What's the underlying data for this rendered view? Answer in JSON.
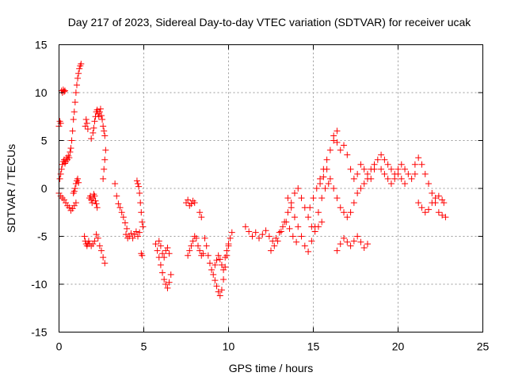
{
  "chart_data": {
    "type": "scatter",
    "title": "Day 217 of 2023, Sidereal Day-to-day VTEC variation (SDTVAR) for receiver ucak",
    "xlabel": "GPS time / hours",
    "ylabel": "SDTVAR / TECUs",
    "xlim": [
      0,
      25
    ],
    "ylim": [
      -15,
      15
    ],
    "xticks": [
      0,
      5,
      10,
      15,
      20,
      25
    ],
    "yticks": [
      -15,
      -10,
      -5,
      0,
      5,
      10,
      15
    ],
    "grid": true,
    "marker": "+",
    "color": "#ff0000",
    "series": [
      {
        "name": "SDTVAR",
        "segments": [
          {
            "x": [
              0.0,
              0.05,
              0.1,
              0.15,
              0.2,
              0.25,
              0.3,
              0.35
            ],
            "y": [
              6.5,
              7.0,
              6.8,
              10.2,
              10.0,
              10.3,
              10.1,
              10.2
            ]
          },
          {
            "x": [
              0.05,
              0.1,
              0.15,
              0.2,
              0.25,
              0.3,
              0.35,
              0.4,
              0.45,
              0.5,
              0.55,
              0.6,
              0.65,
              0.7,
              0.75,
              0.8,
              0.85,
              0.9,
              0.95,
              1.0,
              1.05,
              1.1,
              1.15,
              1.2,
              1.25,
              1.3
            ],
            "y": [
              1.0,
              1.5,
              2.0,
              2.5,
              2.8,
              3.0,
              2.6,
              2.8,
              3.2,
              3.0,
              3.4,
              3.2,
              3.8,
              4.2,
              5.0,
              6.0,
              7.2,
              8.0,
              9.0,
              10.0,
              10.8,
              11.5,
              12.0,
              12.5,
              12.8,
              13.0
            ]
          },
          {
            "x": [
              0.0,
              0.1,
              0.2,
              0.3,
              0.4,
              0.5,
              0.6,
              0.7,
              0.8,
              0.9,
              1.0
            ],
            "y": [
              -0.5,
              -0.8,
              -1.0,
              -1.2,
              -1.5,
              -1.8,
              -2.0,
              -2.3,
              -2.1,
              -1.8,
              -1.5
            ]
          },
          {
            "x": [
              0.85,
              0.9,
              0.95,
              1.0,
              1.05,
              1.1,
              1.15
            ],
            "y": [
              -0.5,
              -0.3,
              0.0,
              0.5,
              0.8,
              1.0,
              0.6
            ]
          },
          {
            "x": [
              1.5,
              1.55,
              1.6,
              1.65,
              1.7,
              1.75,
              1.8,
              1.9,
              2.0,
              2.1
            ],
            "y": [
              -5.0,
              -5.5,
              -5.8,
              -6.0,
              -5.8,
              -5.5,
              -5.8,
              -6.0,
              -5.8,
              -5.5
            ]
          },
          {
            "x": [
              1.55,
              1.6,
              1.65,
              1.7
            ],
            "y": [
              6.5,
              7.2,
              6.8,
              6.2
            ]
          },
          {
            "x": [
              1.9,
              2.0,
              2.05,
              2.1,
              2.15,
              2.2,
              2.25,
              2.3,
              2.35,
              2.4,
              2.45,
              2.5,
              2.55,
              2.6,
              2.65,
              2.7
            ],
            "y": [
              5.2,
              5.8,
              6.3,
              7.0,
              7.5,
              8.0,
              8.2,
              7.8,
              7.5,
              8.0,
              8.3,
              7.6,
              7.2,
              6.5,
              6.0,
              5.5
            ]
          },
          {
            "x": [
              1.8,
              1.85,
              1.9,
              1.95,
              2.0,
              2.05,
              2.1,
              2.15,
              2.2,
              2.25
            ],
            "y": [
              -1.0,
              -0.8,
              -1.2,
              -1.5,
              -1.0,
              -0.6,
              -0.8,
              -1.3,
              -1.6,
              -2.0
            ]
          },
          {
            "x": [
              2.2,
              2.3,
              2.4,
              2.5,
              2.6,
              2.7
            ],
            "y": [
              -4.8,
              -5.2,
              -6.0,
              -6.5,
              -7.2,
              -7.8
            ]
          },
          {
            "x": [
              2.6,
              2.65,
              2.7,
              2.75
            ],
            "y": [
              1.0,
              2.0,
              3.0,
              4.0
            ]
          },
          {
            "x": [
              3.3,
              3.4,
              3.5,
              3.6,
              3.7,
              3.8,
              3.9,
              4.0
            ],
            "y": [
              0.5,
              -0.8,
              -1.6,
              -2.0,
              -2.5,
              -3.0,
              -3.6,
              -4.2
            ]
          },
          {
            "x": [
              3.95,
              4.05,
              4.15,
              4.25,
              4.35,
              4.45,
              4.55,
              4.65,
              4.75
            ],
            "y": [
              -4.8,
              -5.2,
              -5.0,
              -4.7,
              -5.2,
              -4.8,
              -4.5,
              -5.0,
              -4.6
            ]
          },
          {
            "x": [
              4.6,
              4.65,
              4.7,
              4.75,
              4.8,
              4.85,
              4.9,
              4.95
            ],
            "y": [
              0.8,
              0.5,
              0.2,
              -0.5,
              -1.5,
              -2.5,
              -3.5,
              -4.0
            ]
          },
          {
            "x": [
              4.85,
              4.9
            ],
            "y": [
              -6.8,
              -7.0
            ]
          },
          {
            "x": [
              5.7,
              5.8,
              5.9,
              6.0,
              6.1,
              6.2,
              6.3,
              6.4,
              6.5,
              6.6
            ],
            "y": [
              -5.8,
              -6.5,
              -7.2,
              -8.0,
              -8.8,
              -9.5,
              -10.0,
              -10.4,
              -9.8,
              -9.0
            ]
          },
          {
            "x": [
              5.9,
              6.0,
              6.1,
              6.2,
              6.3,
              6.4,
              6.5
            ],
            "y": [
              -5.5,
              -6.0,
              -6.8,
              -7.2,
              -6.5,
              -6.2,
              -6.8
            ]
          },
          {
            "x": [
              7.5,
              7.6,
              7.7,
              7.8,
              7.9,
              8.0
            ],
            "y": [
              -1.5,
              -1.2,
              -1.8,
              -1.6,
              -1.3,
              -1.5
            ]
          },
          {
            "x": [
              8.3,
              8.4
            ],
            "y": [
              -2.5,
              -3.0
            ]
          },
          {
            "x": [
              7.6,
              7.7,
              7.8,
              7.9,
              8.0,
              8.1,
              8.2,
              8.3,
              8.4,
              8.5
            ],
            "y": [
              -7.0,
              -6.5,
              -6.0,
              -5.5,
              -5.0,
              -5.2,
              -6.0,
              -6.5,
              -7.0,
              -6.8
            ]
          },
          {
            "x": [
              8.6,
              8.7,
              8.8,
              8.9,
              9.0,
              9.1,
              9.2,
              9.3,
              9.4,
              9.5,
              9.6,
              9.7,
              9.8,
              9.9,
              10.0
            ],
            "y": [
              -5.2,
              -6.0,
              -7.0,
              -7.8,
              -8.5,
              -9.0,
              -9.6,
              -10.2,
              -10.8,
              -11.2,
              -10.6,
              -9.5,
              -8.2,
              -7.0,
              -6.0
            ]
          },
          {
            "x": [
              9.2,
              9.3,
              9.4,
              9.5,
              9.6,
              9.7,
              9.8,
              9.9,
              10.0,
              10.1,
              10.2
            ],
            "y": [
              -8.0,
              -7.5,
              -7.0,
              -7.4,
              -8.0,
              -8.5,
              -7.2,
              -6.5,
              -5.8,
              -5.2,
              -4.6
            ]
          },
          {
            "x": [
              11.0,
              11.2,
              11.4,
              11.6,
              11.8,
              12.0,
              12.2,
              12.4,
              12.6,
              12.8,
              13.0,
              13.2,
              13.4,
              13.6,
              13.8,
              14.0
            ],
            "y": [
              -4.0,
              -4.5,
              -5.0,
              -4.6,
              -5.2,
              -4.8,
              -4.4,
              -5.0,
              -5.5,
              -5.2,
              -4.6,
              -4.0,
              -3.5,
              -4.2,
              -5.0,
              -5.6
            ]
          },
          {
            "x": [
              12.5,
              12.7,
              12.9,
              13.1,
              13.3,
              13.5,
              13.7,
              13.9,
              14.1,
              14.3,
              14.5,
              14.7,
              14.9,
              15.1,
              15.3,
              15.5
            ],
            "y": [
              -6.5,
              -6.0,
              -5.5,
              -4.5,
              -3.5,
              -2.5,
              -1.5,
              -0.5,
              0.0,
              -1.0,
              -2.0,
              -3.0,
              -4.0,
              -4.5,
              -4.0,
              -3.5
            ]
          },
          {
            "x": [
              13.5,
              13.7,
              13.9,
              14.1,
              14.3,
              14.5,
              14.7,
              14.9,
              15.1,
              15.3,
              15.5,
              15.7,
              15.9
            ],
            "y": [
              -1.0,
              -2.0,
              -3.0,
              -4.0,
              -5.0,
              -6.0,
              -6.6,
              -5.5,
              -4.0,
              -2.5,
              -1.0,
              0.0,
              0.5
            ]
          },
          {
            "x": [
              14.8,
              15.0,
              15.2,
              15.4,
              15.6,
              15.8,
              16.0,
              16.2,
              16.4
            ],
            "y": [
              -2.0,
              -1.0,
              0.0,
              1.0,
              2.0,
              3.0,
              4.0,
              5.0,
              6.0
            ]
          },
          {
            "x": [
              15.4,
              15.6,
              15.8,
              16.0,
              16.2,
              16.4,
              16.6,
              16.8,
              17.0,
              17.2,
              17.4,
              17.6,
              17.8,
              18.0,
              18.2
            ],
            "y": [
              0.5,
              1.2,
              2.0,
              1.0,
              0.0,
              -1.0,
              -2.0,
              -2.5,
              -3.0,
              -2.5,
              -1.5,
              -0.5,
              0.0,
              0.5,
              1.0
            ]
          },
          {
            "x": [
              16.4,
              16.6,
              16.8,
              17.0,
              17.2,
              17.4,
              17.6,
              17.8,
              18.0,
              18.2
            ],
            "y": [
              -6.5,
              -5.8,
              -5.2,
              -5.6,
              -6.0,
              -5.5,
              -5.0,
              -5.6,
              -6.2,
              -5.8
            ]
          },
          {
            "x": [
              16.2,
              16.4,
              16.6,
              16.8,
              17.0,
              17.2,
              17.4,
              17.6,
              17.8,
              18.0,
              18.2,
              18.4,
              18.6
            ],
            "y": [
              5.5,
              4.8,
              4.0,
              4.5,
              3.5,
              2.0,
              1.0,
              1.5,
              2.5,
              2.0,
              1.5,
              2.0,
              2.5
            ]
          },
          {
            "x": [
              18.4,
              18.6,
              18.8,
              19.0,
              19.2,
              19.4,
              19.6,
              19.8,
              20.0,
              20.2,
              20.4,
              20.6,
              20.8,
              21.0
            ],
            "y": [
              1.0,
              2.0,
              3.0,
              3.5,
              3.0,
              2.5,
              2.0,
              1.5,
              2.0,
              2.5,
              2.0,
              1.5,
              1.0,
              1.5
            ]
          },
          {
            "x": [
              19.0,
              19.2,
              19.4,
              19.6,
              19.8,
              20.0,
              20.2,
              20.4
            ],
            "y": [
              2.0,
              1.5,
              1.0,
              0.5,
              1.0,
              1.5,
              1.0,
              0.5
            ]
          },
          {
            "x": [
              21.0,
              21.2,
              21.4,
              21.6,
              21.8,
              22.0,
              22.2,
              22.4,
              22.6,
              22.8
            ],
            "y": [
              2.5,
              3.2,
              2.5,
              1.5,
              0.5,
              -0.5,
              -1.5,
              -2.5,
              -2.8,
              -3.0
            ]
          },
          {
            "x": [
              21.2,
              21.4,
              21.6,
              21.8,
              22.0,
              22.2,
              22.4,
              22.6,
              22.7
            ],
            "y": [
              -1.5,
              -2.0,
              -2.5,
              -2.2,
              -1.5,
              -1.0,
              -0.8,
              -1.2,
              -1.5
            ]
          }
        ]
      }
    ]
  }
}
